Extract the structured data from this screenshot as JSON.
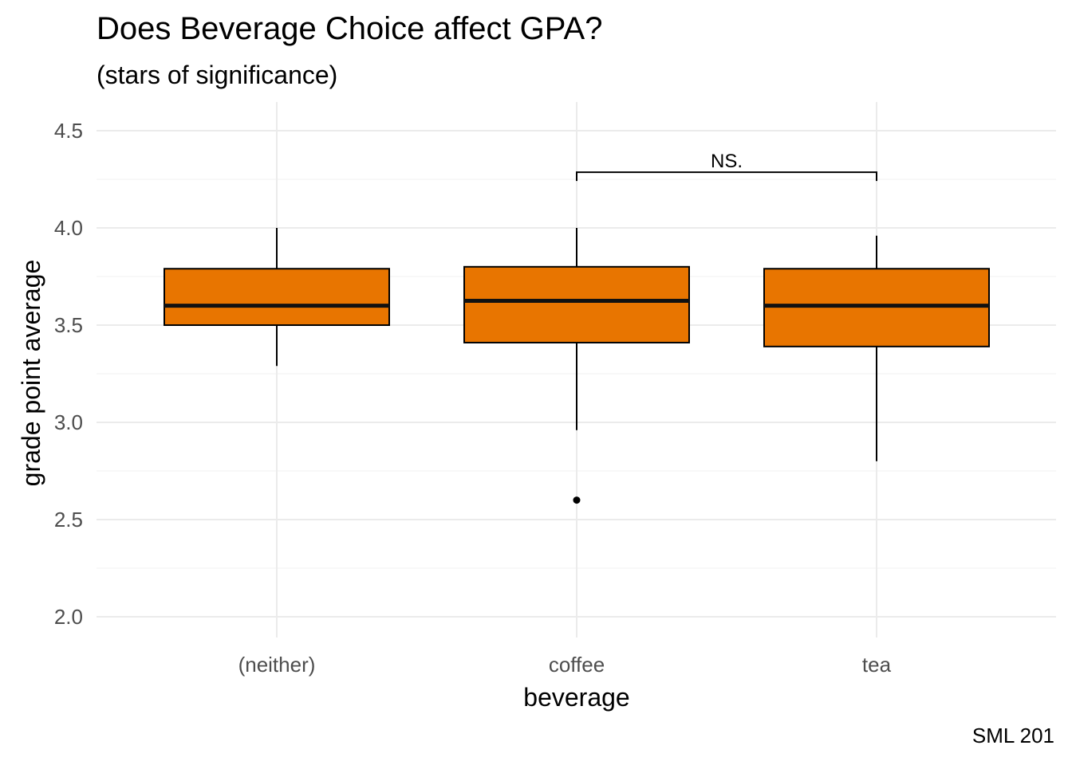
{
  "chart_data": {
    "type": "box",
    "title": "Does Beverage Choice affect GPA?",
    "subtitle": "(stars of significance)",
    "caption": "SML 201",
    "xlabel": "beverage",
    "ylabel": "grade point average",
    "ylim": [
      2.0,
      4.5
    ],
    "yticks": [
      "2.0",
      "2.5",
      "3.0",
      "3.5",
      "4.0",
      "4.5"
    ],
    "categories": [
      "(neither)",
      "coffee",
      "tea"
    ],
    "boxes": [
      {
        "category": "(neither)",
        "lower_whisker": 3.29,
        "q1": 3.5,
        "median": 3.6,
        "q3": 3.79,
        "upper_whisker": 4.0,
        "outliers": []
      },
      {
        "category": "coffee",
        "lower_whisker": 2.96,
        "q1": 3.41,
        "median": 3.625,
        "q3": 3.8,
        "upper_whisker": 4.0,
        "outliers": [
          2.6
        ]
      },
      {
        "category": "tea",
        "lower_whisker": 2.8,
        "q1": 3.39,
        "median": 3.6,
        "q3": 3.79,
        "upper_whisker": 3.96,
        "outliers": []
      }
    ],
    "fill_color": "#e87500",
    "grid": true,
    "annotations": [
      {
        "from": "coffee",
        "to": "tea",
        "y": 4.27,
        "label": "NS."
      }
    ]
  }
}
